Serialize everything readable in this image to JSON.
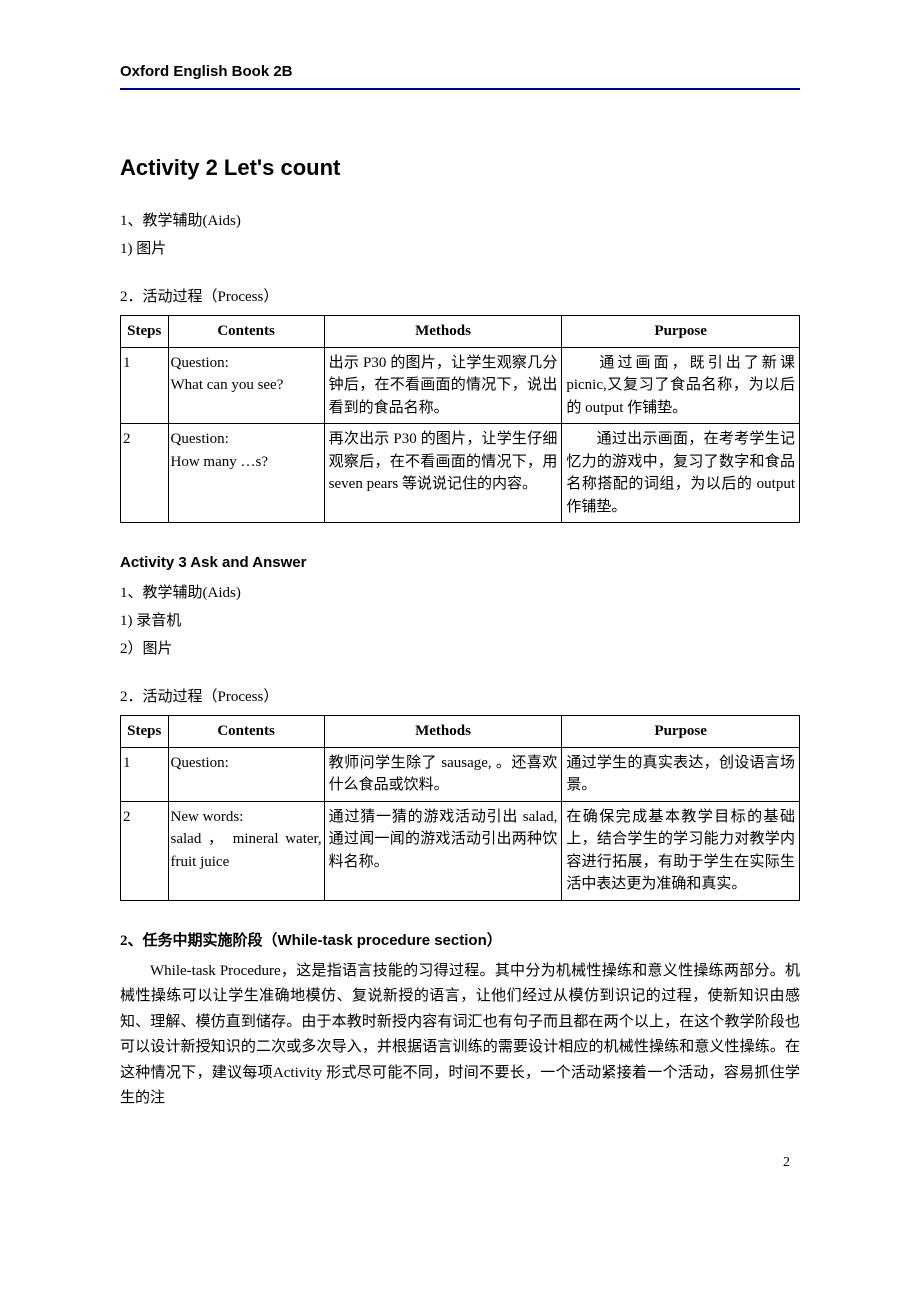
{
  "header": {
    "text": "Oxford English Book 2B"
  },
  "activity2": {
    "title": "Activity 2   Let's count",
    "aids_line": "1、教学辅助(Aids)",
    "aids_item1": "1)  图片",
    "process_line": "2．活动过程（Process）",
    "table": {
      "headers": {
        "steps": "Steps",
        "contents": "Contents",
        "methods": "Methods",
        "purpose": "Purpose"
      },
      "rows": [
        {
          "step": "1",
          "contents": "Question:\nWhat can you see?",
          "methods": "出示 P30 的图片，让学生观察几分钟后，在不看画面的情况下，说出看到的食品名称。",
          "purpose": "通过画面，既引出了新课 picnic,又复习了食品名称，为以后的 output 作铺垫。"
        },
        {
          "step": "2",
          "contents": "Question:\nHow many …s?",
          "methods": "再次出示 P30 的图片，让学生仔细观察后，在不看画面的情况下，用 seven pears 等说说记住的内容。",
          "purpose": "通过出示画面，在考考学生记忆力的游戏中，复习了数字和食品名称搭配的词组，为以后的 output 作铺垫。"
        }
      ]
    }
  },
  "activity3": {
    "title": "Activity 3    Ask and Answer",
    "aids_line": "1、教学辅助(Aids)",
    "aids_item1": "1)  录音机",
    "aids_item2": "2）图片",
    "process_line": "2．活动过程（Process）",
    "table": {
      "headers": {
        "steps": "Steps",
        "contents": "Contents",
        "methods": "Methods",
        "purpose": "Purpose"
      },
      "rows": [
        {
          "step": "1",
          "contents": "Question:",
          "methods": "教师问学生除了 sausage, 。还喜欢什么食品或饮料。",
          "purpose": "通过学生的真实表达，创设语言场景。"
        },
        {
          "step": "2",
          "contents": "New words:\nsalad ， mineral water, fruit juice",
          "methods": "通过猜一猜的游戏活动引出 salad, 通过闻一闻的游戏活动引出两种饮料名称。",
          "purpose": "在确保完成基本教学目标的基础上，结合学生的学习能力对教学内容进行拓展，有助于学生在实际生活中表达更为准确和真实。"
        }
      ]
    }
  },
  "section": {
    "header_cn": "2、任务中期实施阶段（",
    "header_en": "While-task procedure section",
    "header_close": "）",
    "para": "While-task Procedure，这是指语言技能的习得过程。其中分为机械性操练和意义性操练两部分。机械性操练可以让学生准确地模仿、复说新授的语言，让他们经过从模仿到识记的过程，使新知识由感知、理解、模仿直到储存。由于本教时新授内容有词汇也有句子而且都在两个以上，在这个教学阶段也可以设计新授知识的二次或多次导入，并根据语言训练的需要设计相应的机械性操练和意义性操练。在这种情况下，建议每项Activity 形式尽可能不同，时间不要长，一个活动紧接着一个活动，容易抓住学生的注"
  },
  "page_number": "2"
}
